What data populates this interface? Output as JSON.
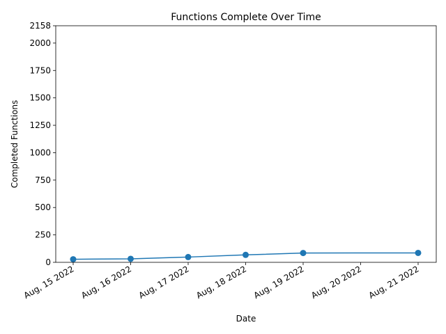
{
  "chart_data": {
    "type": "line",
    "title": "Functions Complete Over Time",
    "xlabel": "Date",
    "ylabel": "Completed Functions",
    "x": [
      "2022-08-15",
      "2022-08-16",
      "2022-08-17",
      "2022-08-18",
      "2022-08-19",
      "2022-08-20",
      "2022-08-21"
    ],
    "x_tick_labels": [
      "Aug, 15 2022",
      "Aug, 16 2022",
      "Aug, 17 2022",
      "Aug, 18 2022",
      "Aug, 19 2022",
      "Aug, 20 2022",
      "Aug, 21 2022"
    ],
    "y_ticks": [
      0,
      250,
      500,
      750,
      1000,
      1250,
      1500,
      1750,
      2000,
      2158
    ],
    "ylim": [
      0,
      2158
    ],
    "grid": false,
    "series": [
      {
        "color": "#1f77b4",
        "x": [
          "2022-08-15",
          "2022-08-16",
          "2022-08-17",
          "2022-08-18",
          "2022-08-19",
          "2022-08-21"
        ],
        "values": [
          28,
          32,
          48,
          68,
          85,
          86
        ]
      }
    ]
  }
}
